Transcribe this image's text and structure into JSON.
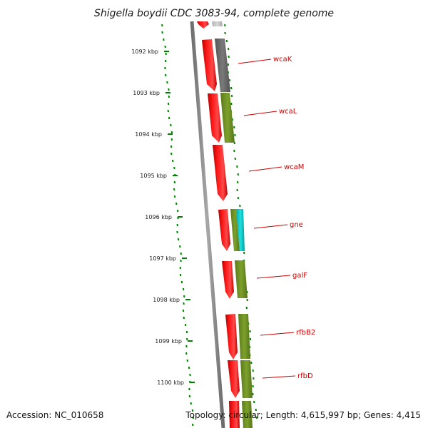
{
  "title": "Shigella boydii CDC 3083-94, complete genome",
  "accession": "Accession: NC_010658",
  "summary": "Topology: circular; Length: 4,615,997 bp; Genes: 4,415",
  "ticks": [
    "1092 kbp",
    "1093 kbp",
    "1094 kbp",
    "1095 kbp",
    "1096 kbp",
    "1097 kbp",
    "1098 kbp",
    "1099 kbp",
    "1100 kbp"
  ],
  "genes": [
    {
      "label": "wcaK",
      "forward_color": "#ff0000",
      "track_color": "#666666"
    },
    {
      "label": "wcaL",
      "forward_color": "#ff0000",
      "track_color": "#6b8e23"
    },
    {
      "label": "wcaM",
      "forward_color": "#ff0000",
      "track_color": ""
    },
    {
      "label": "gne",
      "forward_color": "#ff0000",
      "track_color": "#00cdcd"
    },
    {
      "label": "galF",
      "forward_color": "#ff0000",
      "track_color": "#6b8e23"
    },
    {
      "label": "rfbB2",
      "forward_color": "#ff0000",
      "track_color": "#6b8e23"
    },
    {
      "label": "rfbD",
      "forward_color": "#ff0000",
      "track_color": "#6b8e23"
    }
  ],
  "colors": {
    "cds": "#ff0000",
    "cog_unknown": "#666666",
    "cog_metabolism": "#6b8e23",
    "cog_other": "#00cdcd",
    "backbone": "#808080",
    "gc_ticks": "#008000",
    "label": "#cc0000"
  }
}
